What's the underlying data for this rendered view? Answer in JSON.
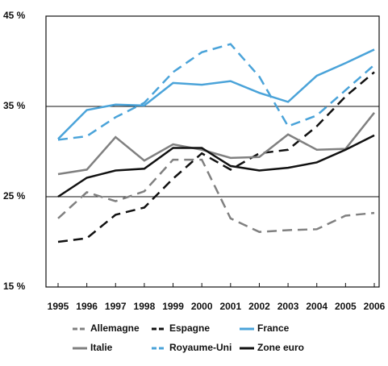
{
  "chart_data": {
    "type": "line",
    "categories": [
      "1995",
      "1996",
      "1997",
      "1998",
      "1999",
      "2000",
      "2001",
      "2002",
      "2003",
      "2004",
      "2005",
      "2006"
    ],
    "series": [
      {
        "name": "Allemagne",
        "color": "#808080",
        "dash": true,
        "values": [
          22.6,
          25.5,
          24.5,
          25.6,
          29.1,
          29.1,
          22.6,
          21.1,
          21.3,
          21.4,
          22.9,
          23.2
        ]
      },
      {
        "name": "Espagne",
        "color": "#111111",
        "dash": true,
        "values": [
          20.0,
          20.4,
          23.0,
          23.8,
          27.0,
          29.8,
          28.0,
          29.8,
          30.2,
          32.8,
          36.1,
          38.8
        ]
      },
      {
        "name": "France",
        "color": "#4aa3d9",
        "dash": false,
        "values": [
          31.4,
          34.6,
          35.2,
          35.1,
          37.6,
          37.4,
          37.8,
          36.5,
          35.5,
          38.4,
          39.8,
          41.3
        ]
      },
      {
        "name": "Italie",
        "color": "#808080",
        "dash": false,
        "values": [
          27.5,
          28.0,
          31.6,
          29.0,
          30.8,
          30.2,
          29.3,
          29.4,
          31.9,
          30.2,
          30.3,
          34.3
        ]
      },
      {
        "name": "Royaume-Uni",
        "color": "#4aa3d9",
        "dash": true,
        "values": [
          31.3,
          31.7,
          33.8,
          35.4,
          38.8,
          41.0,
          41.9,
          38.3,
          32.8,
          34.0,
          36.8,
          39.6
        ]
      },
      {
        "name": "Zone euro",
        "color": "#111111",
        "dash": false,
        "values": [
          25.0,
          27.1,
          27.9,
          28.1,
          30.4,
          30.4,
          28.4,
          27.9,
          28.2,
          28.8,
          30.2,
          31.8
        ]
      }
    ],
    "ylim": [
      15,
      45
    ],
    "yticks": [
      {
        "value": 15,
        "label": "15 %"
      },
      {
        "value": 25,
        "label": "25 %"
      },
      {
        "value": 35,
        "label": "35 %"
      },
      {
        "value": 45,
        "label": "45 %"
      }
    ],
    "grid": true,
    "legend": "bottom"
  }
}
